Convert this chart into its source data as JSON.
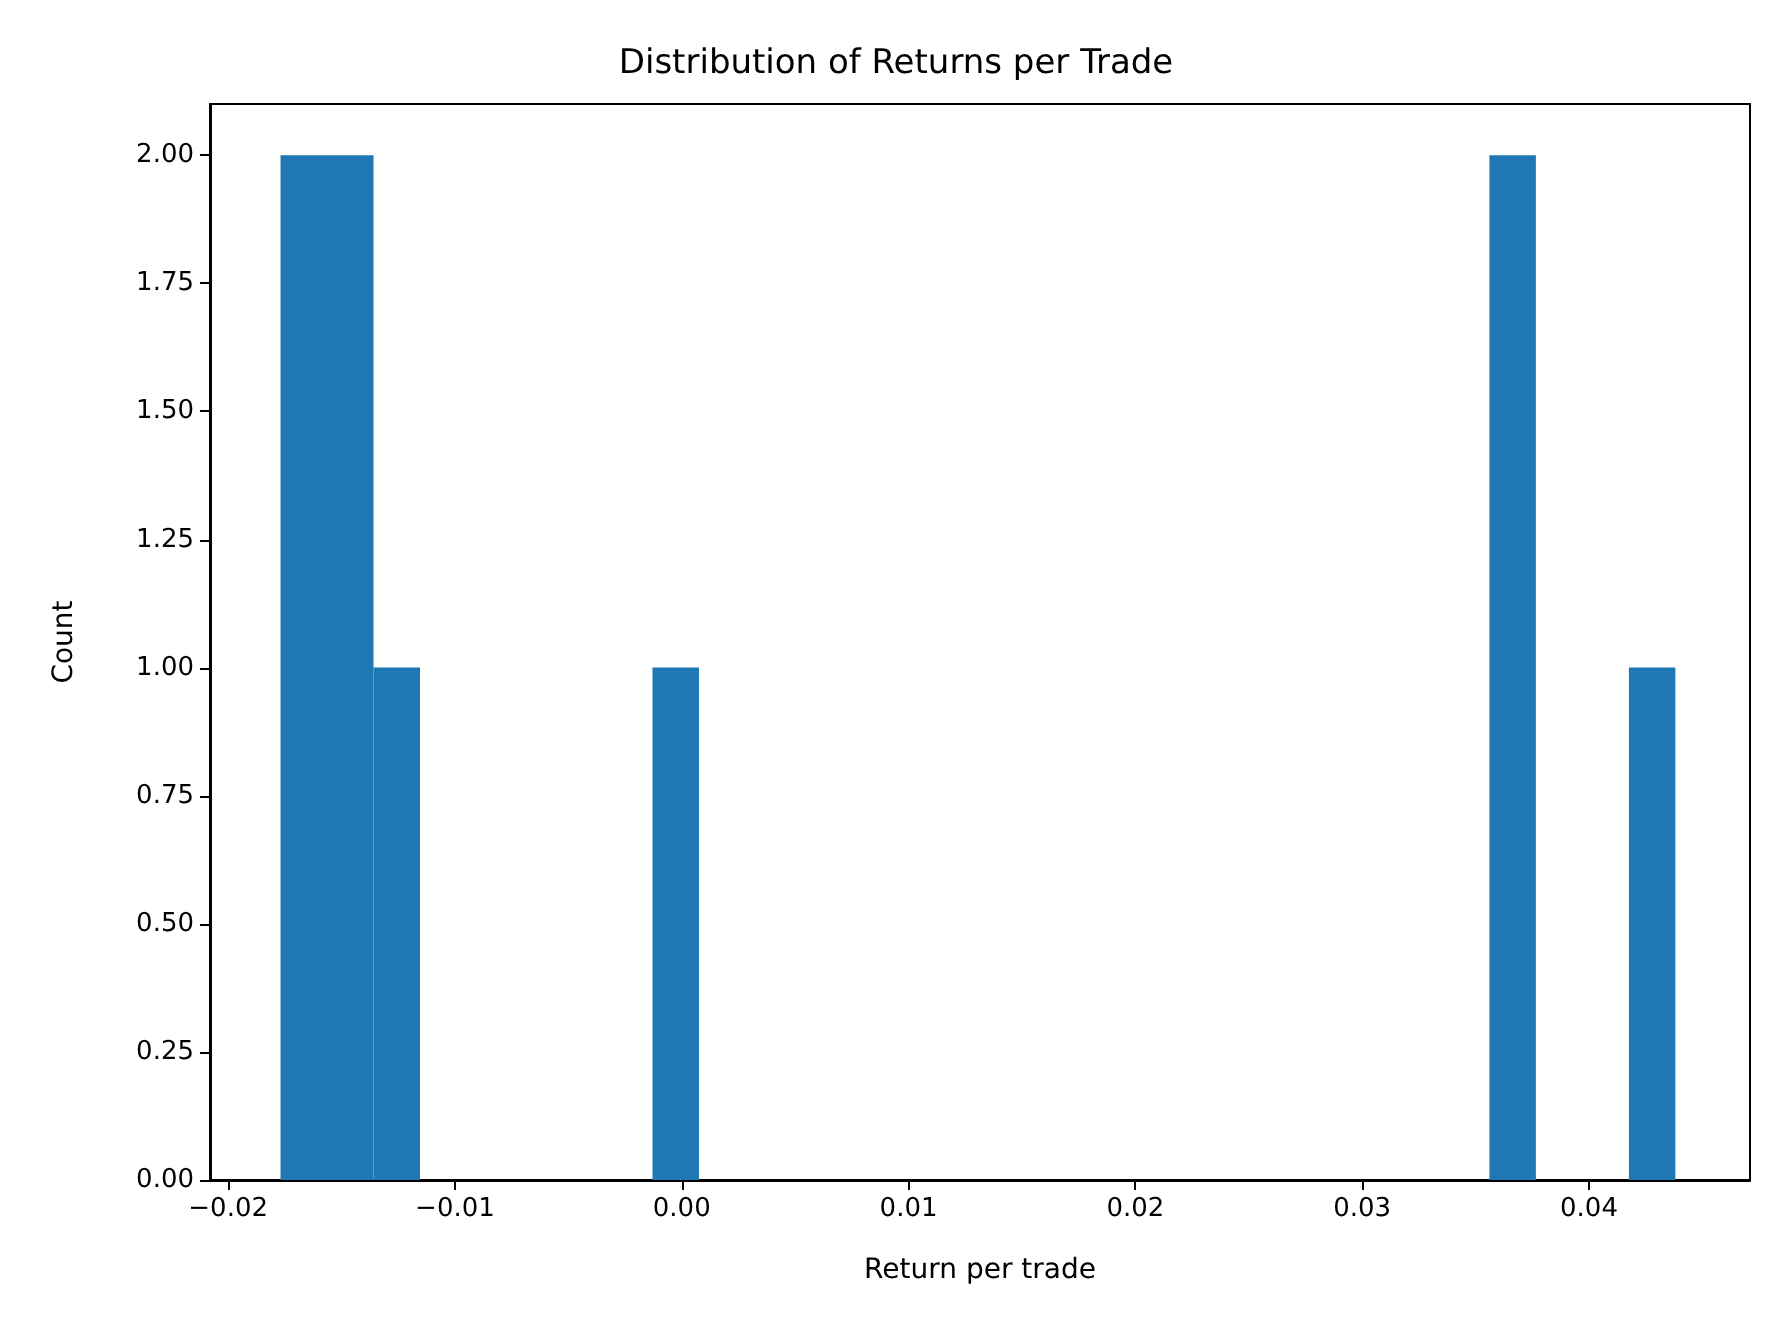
{
  "chart_data": {
    "type": "histogram",
    "title": "Distribution of Returns per Trade",
    "xlabel": "Return per trade",
    "ylabel": "Count",
    "color": "#1f77b4",
    "bins": [
      -0.01769,
      -0.01564,
      -0.01359,
      -0.01154,
      -0.00949,
      -0.00744,
      -0.00539,
      -0.00334,
      -0.00129,
      0.00076,
      0.00281,
      0.00486,
      0.00691,
      0.00896,
      0.01101,
      0.01306,
      0.01511,
      0.01716,
      0.01921,
      0.02126,
      0.02331,
      0.02536,
      0.02741,
      0.02946,
      0.03151,
      0.03356,
      0.03561,
      0.03766,
      0.03971,
      0.04176,
      0.04381
    ],
    "values": [
      2,
      2,
      1,
      0,
      0,
      0,
      0,
      0,
      1,
      0,
      0,
      0,
      0,
      0,
      0,
      0,
      0,
      0,
      0,
      0,
      0,
      0,
      0,
      0,
      0,
      0,
      2,
      0,
      0,
      1
    ],
    "xlim": [
      -0.0208,
      0.0471
    ],
    "xticks": [
      {
        "value": -0.02,
        "label": "−0.02"
      },
      {
        "value": -0.01,
        "label": "−0.01"
      },
      {
        "value": 0,
        "label": "0.00"
      },
      {
        "value": 0.01,
        "label": "0.01"
      },
      {
        "value": 0.02,
        "label": "0.02"
      },
      {
        "value": 0.03,
        "label": "0.03"
      },
      {
        "value": 0.04,
        "label": "0.04"
      }
    ],
    "ylim": [
      0,
      2.1
    ],
    "yticks": [
      {
        "value": 0,
        "label": "0.00"
      },
      {
        "value": 0.25,
        "label": "0.25"
      },
      {
        "value": 0.5,
        "label": "0.50"
      },
      {
        "value": 0.75,
        "label": "0.75"
      },
      {
        "value": 1,
        "label": "1.00"
      },
      {
        "value": 1.25,
        "label": "1.25"
      },
      {
        "value": 1.5,
        "label": "1.50"
      },
      {
        "value": 1.75,
        "label": "1.75"
      },
      {
        "value": 2,
        "label": "2.00"
      }
    ],
    "grid": false
  }
}
